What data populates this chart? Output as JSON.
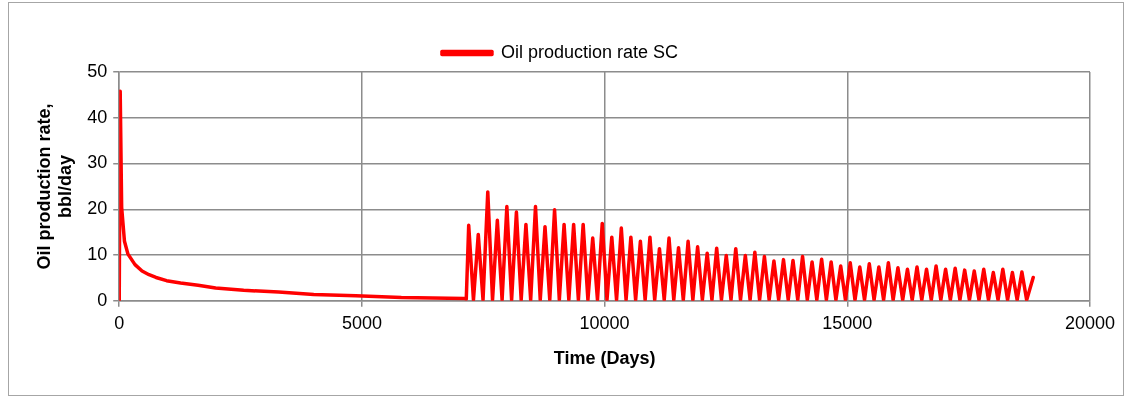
{
  "chart_data": {
    "type": "line",
    "xlabel": "Time (Days)",
    "ylabel": "Oil production rate, bbl/day",
    "xlim": [
      0,
      20000
    ],
    "xticks": [
      0,
      5000,
      10000,
      15000,
      20000
    ],
    "ylim": [
      0,
      50
    ],
    "yticks": [
      0,
      10,
      20,
      30,
      40,
      50
    ],
    "grid": true,
    "legend": "top",
    "marker": "none",
    "line_style": "solid",
    "series": [
      {
        "name": "Oil production rate SC",
        "color": "#ff0000",
        "x": [
          0,
          20,
          50,
          108,
          180,
          325,
          470,
          614,
          758,
          975,
          1264,
          1625,
          1986,
          2563,
          3285,
          4007,
          4874,
          5812,
          7112,
          7150,
          7200,
          7298,
          7397,
          7495,
          7593,
          7691,
          7790,
          7888,
          7986,
          8084,
          8183,
          8281,
          8379,
          8477,
          8576,
          8674,
          8772,
          8870,
          8969,
          9067,
          9165,
          9263,
          9362,
          9460,
          9558,
          9656,
          9755,
          9853,
          9951,
          10049,
          10148,
          10246,
          10344,
          10442,
          10541,
          10639,
          10737,
          10835,
          10934,
          11032,
          11130,
          11228,
          11327,
          11425,
          11523,
          11621,
          11720,
          11818,
          11916,
          12014,
          12113,
          12211,
          12309,
          12407,
          12506,
          12604,
          12702,
          12800,
          12899,
          12997,
          13095,
          13193,
          13292,
          13390,
          13488,
          13586,
          13685,
          13783,
          13881,
          13979,
          14078,
          14176,
          14274,
          14372,
          14471,
          14569,
          14667,
          14765,
          14864,
          14962,
          15060,
          15158,
          15257,
          15355,
          15453,
          15551,
          15650,
          15748,
          15846,
          15944,
          16043,
          16141,
          16239,
          16337,
          16436,
          16534,
          16632,
          16730,
          16829,
          16927,
          17025,
          17123,
          17222,
          17320,
          17418,
          17516,
          17615,
          17713,
          17811,
          17909,
          18008,
          18106,
          18204,
          18302,
          18401,
          18499,
          18597,
          18695,
          18830
        ],
        "values": [
          0,
          45.8,
          20.4,
          13,
          10.2,
          7.9,
          6.5,
          5.7,
          5.1,
          4.4,
          3.9,
          3.4,
          2.8,
          2.3,
          1.9,
          1.4,
          1.1,
          0.7,
          0.5,
          0.4,
          16.5,
          0.2,
          14.5,
          0.2,
          23.8,
          0.2,
          17.6,
          0.2,
          20.6,
          0.2,
          19.4,
          0.2,
          16.7,
          0.2,
          20.6,
          0.2,
          16.2,
          0.2,
          19.9,
          0.2,
          16.7,
          0.2,
          16.7,
          0.2,
          16.7,
          0.2,
          13.7,
          0.2,
          16.9,
          0.2,
          13.9,
          0.2,
          15.9,
          0.2,
          13.9,
          0.2,
          13,
          0.2,
          13.9,
          0.2,
          11.4,
          0.2,
          13.7,
          0.2,
          11.6,
          0.2,
          13,
          0.2,
          11.8,
          0.2,
          10.4,
          0.2,
          11.5,
          0.2,
          9.9,
          0.2,
          11.4,
          0.2,
          9.9,
          0.2,
          10.6,
          0.2,
          9.7,
          0.2,
          8.7,
          0.2,
          9,
          0.2,
          8.8,
          0.2,
          9.7,
          0.2,
          8.5,
          0.2,
          9.1,
          0.2,
          8.5,
          0.2,
          7.6,
          0.2,
          8.3,
          0.2,
          7.4,
          0.2,
          8.1,
          0.2,
          7.4,
          0.2,
          8.3,
          0.2,
          7.2,
          0.2,
          6.9,
          0.2,
          7.4,
          0.2,
          6.9,
          0.2,
          7.6,
          0.2,
          6.9,
          0.2,
          7.1,
          0.2,
          6.7,
          0.2,
          6.5,
          0.2,
          6.9,
          0.2,
          6.2,
          0.2,
          6.9,
          0.2,
          6.2,
          0.2,
          6.3,
          0.2,
          5.1
        ]
      }
    ]
  }
}
